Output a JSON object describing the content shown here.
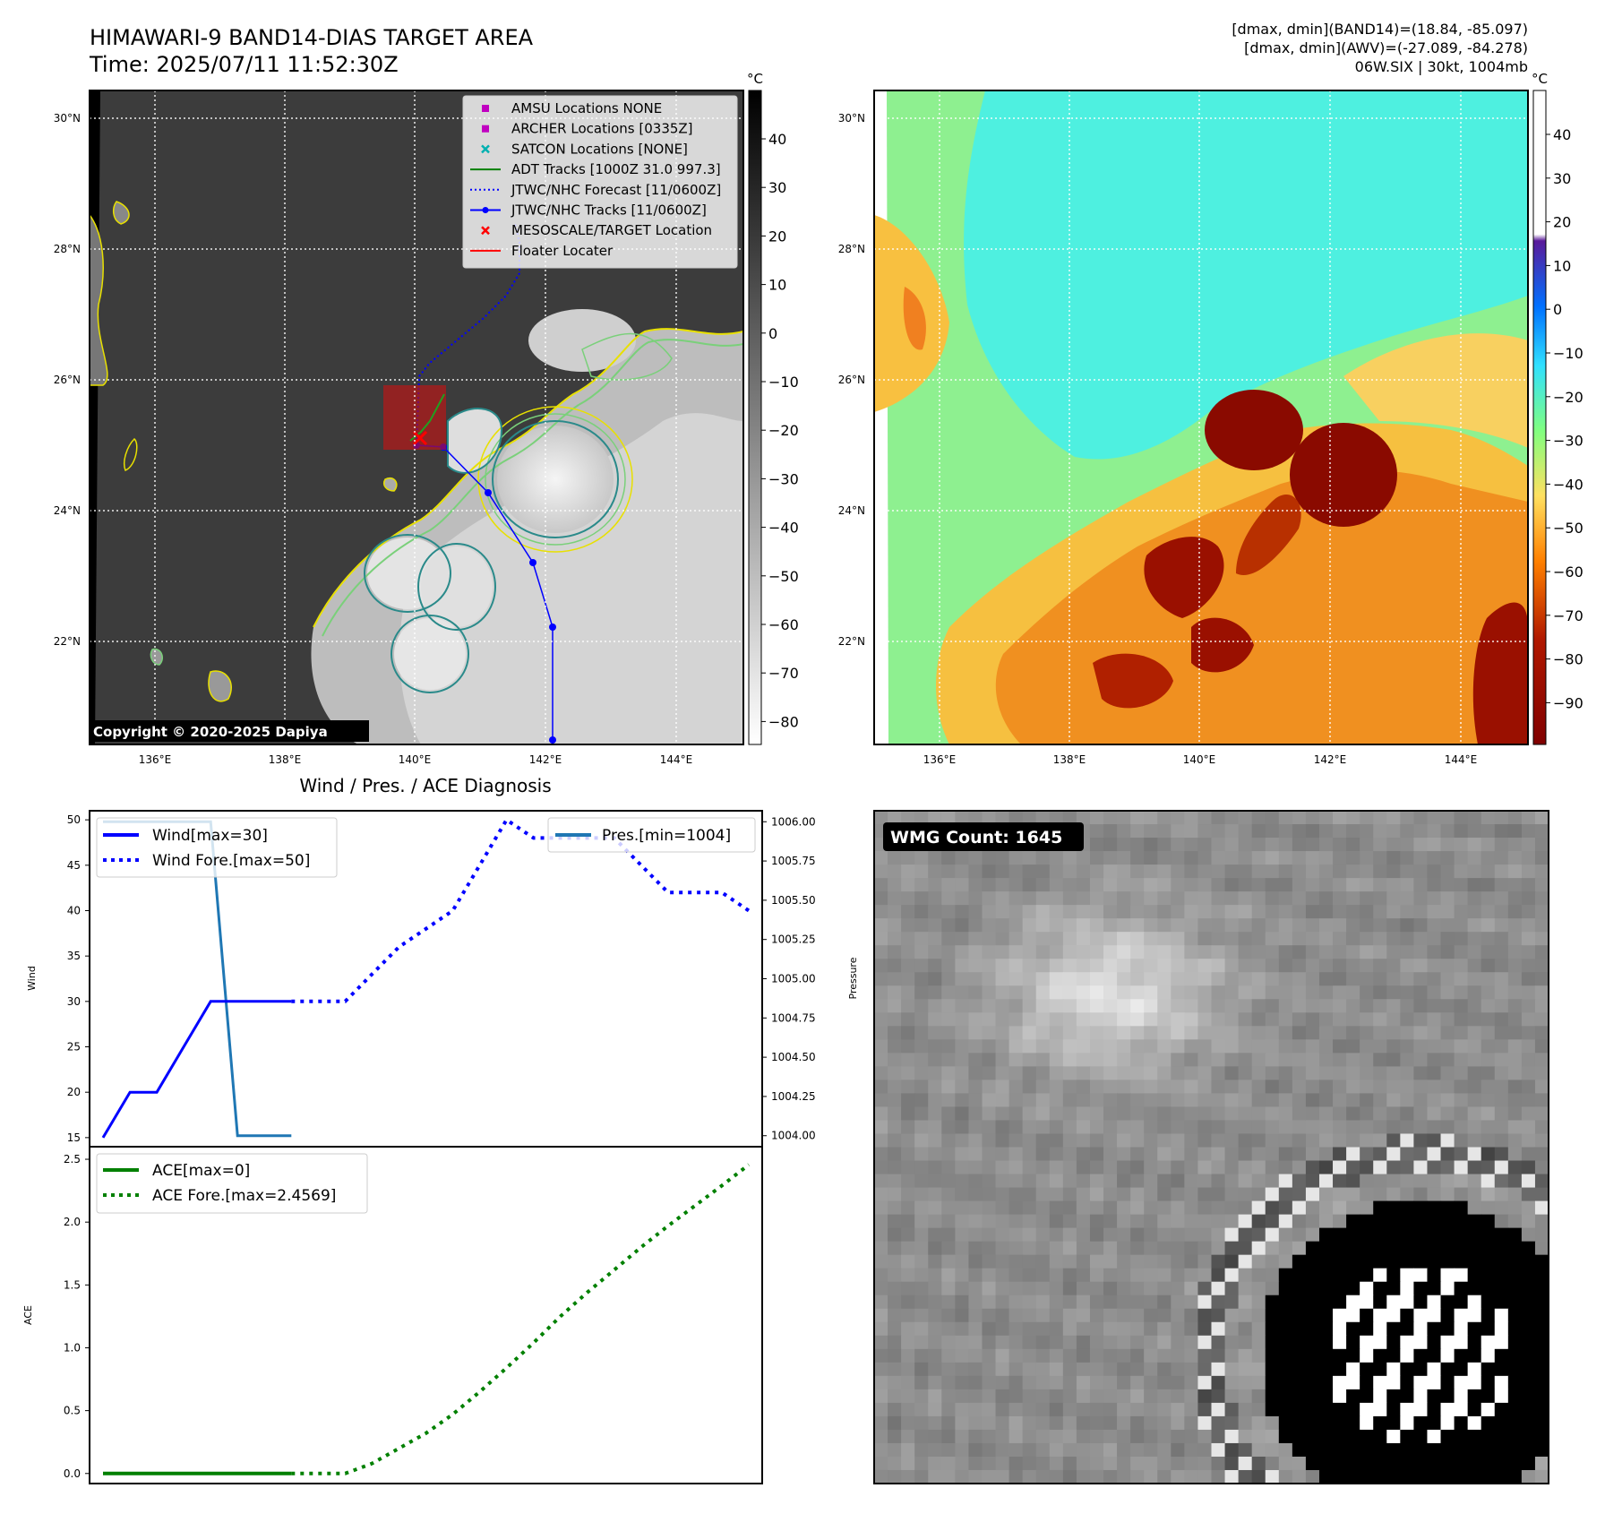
{
  "header": {
    "title_line1": "HIMAWARI-9 BAND14-DIAS TARGET AREA",
    "title_line2": "Time: 2025/07/11 11:52:30Z",
    "info_line1": "[dmax, dmin](BAND14)=(18.84, -85.097)",
    "info_line2": "[dmax, dmin](AWV)=(-27.089, -84.278)",
    "info_line3": "06W.SIX | 30kt, 1004mb"
  },
  "copyright": "Copyright © 2020-2025 Dapiya",
  "map_axes": {
    "lon_labels": [
      "136°E",
      "138°E",
      "140°E",
      "142°E",
      "144°E"
    ],
    "lat_labels": [
      "30°N",
      "28°N",
      "26°N",
      "24°N",
      "22°N"
    ]
  },
  "colorbar_left": {
    "unit": "°C",
    "ticks": [
      "40",
      "30",
      "20",
      "10",
      "0",
      "−10",
      "−20",
      "−30",
      "−40",
      "−50",
      "−60",
      "−70",
      "−80"
    ]
  },
  "colorbar_right": {
    "unit": "°C",
    "ticks": [
      "40",
      "30",
      "20",
      "10",
      "0",
      "−10",
      "−20",
      "−30",
      "−40",
      "−50",
      "−60",
      "−70",
      "−80",
      "−90"
    ]
  },
  "map_legend": [
    {
      "marker": "square",
      "color": "#c000c0",
      "label": "AMSU Locations NONE"
    },
    {
      "marker": "square",
      "color": "#c000c0",
      "label": "ARCHER Locations [0335Z]"
    },
    {
      "marker": "x",
      "color": "#00b0b0",
      "label": "SATCON Locations [NONE]"
    },
    {
      "marker": "line",
      "color": "#008000",
      "label": "ADT Tracks [1000Z 31.0 997.3]"
    },
    {
      "marker": "dotted",
      "color": "#0000ff",
      "label": "JTWC/NHC Forecast [11/0600Z]"
    },
    {
      "marker": "line-dot",
      "color": "#0000ff",
      "label": "JTWC/NHC Tracks [11/0600Z]"
    },
    {
      "marker": "x",
      "color": "#ff0000",
      "label": "MESOSCALE/TARGET Location"
    },
    {
      "marker": "line",
      "color": "#ff0000",
      "label": "Floater Locater"
    }
  ],
  "wind_panel": {
    "title": "Wind / Pres. / ACE Diagnosis",
    "ylabel_left": "Wind",
    "ylabel_right": "Pressure",
    "yticks_left": [
      "50",
      "45",
      "40",
      "35",
      "30",
      "25",
      "20",
      "15"
    ],
    "yticks_right": [
      "1006.00",
      "1005.75",
      "1005.50",
      "1005.25",
      "1005.00",
      "1004.75",
      "1004.50",
      "1004.25",
      "1004.00"
    ],
    "legend_left": [
      "Wind[max=30]",
      "Wind Fore.[max=50]"
    ],
    "legend_right": [
      "Pres.[min=1004]"
    ]
  },
  "ace_panel": {
    "ylabel": "ACE",
    "yticks": [
      "2.5",
      "2.0",
      "1.5",
      "1.0",
      "0.5",
      "0.0"
    ],
    "legend": [
      "ACE[max=0]",
      "ACE Fore.[max=2.4569]"
    ]
  },
  "wmg_label": "WMG Count: 1645",
  "chart_data": [
    {
      "type": "line",
      "title": "Wind / Pres. / ACE Diagnosis",
      "ylabel": "Wind",
      "ylim": [
        14,
        51
      ],
      "series": [
        {
          "name": "Wind[max=30]",
          "x": [
            0,
            1,
            2,
            3,
            4,
            5,
            6,
            7
          ],
          "values": [
            15,
            20,
            20,
            25,
            30,
            30,
            30,
            30
          ]
        },
        {
          "name": "Wind Fore.[max=50]",
          "x": [
            7,
            8,
            9,
            10,
            11,
            12,
            13,
            14,
            15,
            16,
            17,
            18,
            19,
            20,
            21,
            22,
            23,
            24
          ],
          "values": [
            30,
            30,
            30,
            33,
            36,
            38,
            40,
            45,
            50,
            48,
            48,
            48,
            48,
            45,
            42,
            42,
            42,
            40
          ]
        },
        {
          "name": "Pres.[min=1004]",
          "axis": "right",
          "ylim": [
            1003.93,
            1006.07
          ],
          "x": [
            0,
            1,
            2,
            3,
            4,
            5,
            6,
            7
          ],
          "values": [
            1006,
            1006,
            1006,
            1006,
            1006,
            1004,
            1004,
            1004
          ]
        }
      ]
    },
    {
      "type": "line",
      "ylabel": "ACE",
      "ylim": [
        -0.08,
        2.6
      ],
      "series": [
        {
          "name": "ACE[max=0]",
          "x": [
            0,
            1,
            2,
            3,
            4,
            5,
            6,
            7
          ],
          "values": [
            0,
            0,
            0,
            0,
            0,
            0,
            0,
            0
          ]
        },
        {
          "name": "ACE Fore.[max=2.4569]",
          "x": [
            7,
            8,
            9,
            10,
            11,
            12,
            13,
            14,
            15,
            16,
            17,
            18,
            19,
            20,
            21,
            22,
            23,
            24
          ],
          "values": [
            0,
            0,
            0,
            0.08,
            0.2,
            0.32,
            0.47,
            0.65,
            0.84,
            1.04,
            1.25,
            1.44,
            1.62,
            1.8,
            1.97,
            2.13,
            2.29,
            2.4569
          ]
        }
      ]
    }
  ]
}
